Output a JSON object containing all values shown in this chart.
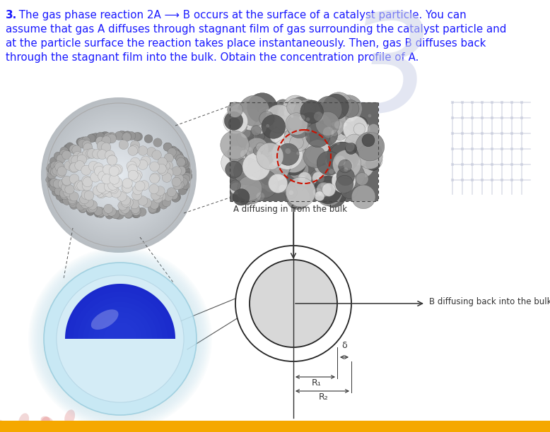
{
  "background_color": "#ffffff",
  "text_color": "#1a1aff",
  "text_bold_color": "#000080",
  "label_A": "A diffusing in from the bulk",
  "label_B": "B diffusing back into the bulk",
  "label_R1": "R₁",
  "label_R2": "R₂",
  "label_delta": "δ",
  "inner_circle_color": "#d8d8d8",
  "circle_edge_color": "#222222",
  "blue_sphere_fill": "#1a2acc",
  "blue_sphere_highlight": "#4466ff",
  "light_blue_outer": "#c5e8f5",
  "light_blue_edge": "#99ccdd",
  "sphere_bg_color": "#b8d8e0",
  "watermark_color": "#cdd3e8",
  "pink_decor_color": "#e8a0a0",
  "diagram_line_color": "#333333",
  "sem_base_color": "#707070",
  "circuit_color": "#c8ccdd",
  "text_lines": [
    "assume that gas A diffuses through stagnant film of gas surrounding the catalyst particle and",
    "at the particle surface the reaction takes place instantaneously. Then, gas B diffuses back",
    "through the stagnant film into the bulk. Obtain the concentration profile of A."
  ],
  "line1_bold": "3.",
  "line1_rest": " The gas phase reaction 2A ⟶ B occurs at the surface of a catalyst particle. You can"
}
